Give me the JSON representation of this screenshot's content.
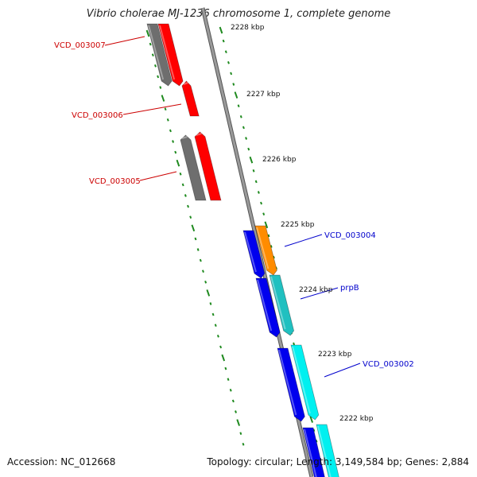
{
  "title": "Vibrio cholerae MJ-1236 chromosome 1, complete genome",
  "footer": {
    "accession": "Accession: NC_012668",
    "summary": "Topology: circular; Length: 3,149,584 bp; Genes: 2,884"
  },
  "colors": {
    "backbone": "#7f7f7f",
    "tick": "#1f8a1f",
    "forward_gene": "#ff0000",
    "grey_gene": "#6e6e6e",
    "reverse_gene": "#0000ee",
    "orange_gene": "#ff8c00",
    "teal_gene": "#20c0c0",
    "cyan_gene": "#00f0f0",
    "label_red": "#cc0000",
    "label_blue": "#0000cc"
  },
  "kbp_labels": [
    "2228 kbp",
    "2227 kbp",
    "2226 kbp",
    "2225 kbp",
    "2224 kbp",
    "2223 kbp",
    "2222 kbp"
  ],
  "gene_labels": [
    {
      "text": "VCD_003007",
      "color": "label_red"
    },
    {
      "text": "VCD_003006",
      "color": "label_red"
    },
    {
      "text": "VCD_003005",
      "color": "label_red"
    },
    {
      "text": "VCD_003004",
      "color": "label_blue"
    },
    {
      "text": "prpB",
      "color": "label_blue"
    },
    {
      "text": "VCD_003002",
      "color": "label_blue"
    }
  ]
}
